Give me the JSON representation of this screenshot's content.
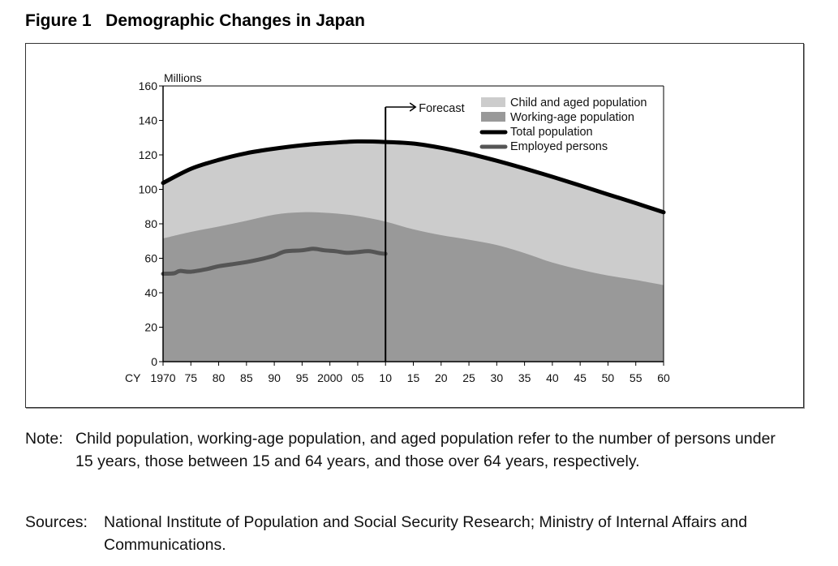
{
  "figure": {
    "title": "Figure 1   Demographic Changes in Japan"
  },
  "chart_data": {
    "type": "area",
    "title": "Demographic Changes in Japan",
    "ylabel": "Millions",
    "xlabel": "CY",
    "ylim": [
      0,
      160
    ],
    "xlim": [
      1970,
      2060
    ],
    "yticks": [
      0,
      20,
      40,
      60,
      80,
      100,
      120,
      140,
      160
    ],
    "xticks": [
      1970,
      1975,
      1980,
      1985,
      1990,
      1995,
      2000,
      2005,
      2010,
      2015,
      2020,
      2025,
      2030,
      2035,
      2040,
      2045,
      2050,
      2055,
      2060
    ],
    "xtick_labels": [
      "1970",
      "75",
      "80",
      "85",
      "90",
      "95",
      "2000",
      "05",
      "10",
      "15",
      "20",
      "25",
      "30",
      "35",
      "40",
      "45",
      "50",
      "55",
      "60"
    ],
    "x_axis_prefix": "CY",
    "grid": false,
    "legend_position": "top-right",
    "annotation": {
      "text": "Forecast",
      "x": 2010
    },
    "x": [
      1970,
      1975,
      1980,
      1985,
      1990,
      1995,
      2000,
      2005,
      2010,
      2015,
      2020,
      2025,
      2030,
      2035,
      2040,
      2045,
      2050,
      2055,
      2060
    ],
    "series": [
      {
        "name": "Total population",
        "kind": "line",
        "role": "total",
        "color": "#000000",
        "values": [
          103.7,
          111.9,
          117.1,
          121.0,
          123.6,
          125.6,
          126.9,
          127.8,
          127.5,
          126.6,
          124.1,
          120.7,
          116.6,
          112.1,
          107.3,
          102.2,
          97.1,
          92.0,
          86.7
        ]
      },
      {
        "name": "Child and aged population",
        "kind": "area",
        "role": "upper-area",
        "color": "#cccccc",
        "values": [
          32.2,
          36.6,
          38.7,
          39.2,
          38.3,
          38.9,
          40.7,
          43.3,
          46.2,
          49.8,
          50.7,
          49.9,
          48.9,
          49.1,
          49.8,
          48.8,
          47.1,
          44.6,
          42.3
        ]
      },
      {
        "name": "Working-age population",
        "kind": "area",
        "role": "lower-area",
        "color": "#999999",
        "values": [
          71.5,
          75.3,
          78.4,
          81.8,
          85.3,
          86.7,
          86.2,
          84.5,
          81.3,
          76.8,
          73.4,
          70.8,
          67.7,
          63.0,
          57.5,
          53.4,
          50.0,
          47.4,
          44.4
        ]
      },
      {
        "name": "Employed persons",
        "kind": "line",
        "role": "employed",
        "color": "#555555",
        "x": [
          1970,
          1972,
          1973,
          1975,
          1978,
          1980,
          1983,
          1985,
          1988,
          1990,
          1992,
          1995,
          1997,
          1999,
          2001,
          2003,
          2005,
          2007,
          2009,
          2010
        ],
        "values": [
          51.0,
          51.3,
          52.6,
          52.2,
          53.8,
          55.4,
          56.8,
          57.8,
          59.8,
          61.5,
          64.0,
          64.6,
          65.5,
          64.6,
          64.1,
          63.2,
          63.6,
          64.1,
          62.9,
          62.6
        ]
      }
    ]
  },
  "legend": {
    "items": [
      {
        "label": "Child and aged population",
        "type": "area",
        "color": "#cccccc"
      },
      {
        "label": "Working-age population",
        "type": "area",
        "color": "#999999"
      },
      {
        "label": "Total population",
        "type": "line",
        "color": "#000000"
      },
      {
        "label": "Employed persons",
        "type": "line",
        "color": "#555555"
      }
    ]
  },
  "notes": {
    "note_label": "Note:",
    "note_text": "Child population, working-age population, and aged population refer to the number of persons under 15 years, those between 15 and 64 years, and those over 64 years, respectively.",
    "sources_label": "Sources:",
    "sources_text": "National Institute of Population and Social Security Research; Ministry of Internal Affairs and Communications."
  }
}
